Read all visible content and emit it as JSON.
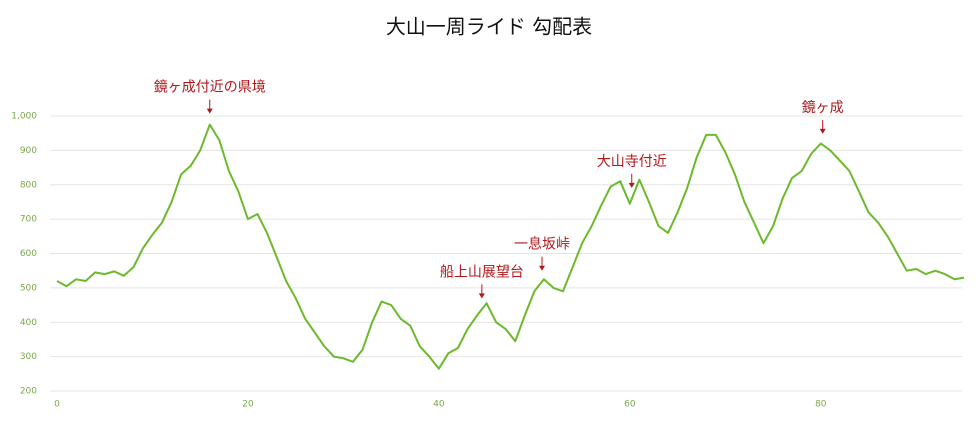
{
  "chart_data": {
    "type": "line",
    "title": "大山一周ライド 勾配表",
    "x": [
      0,
      1,
      2,
      3,
      4,
      5,
      6,
      7,
      8,
      9,
      10,
      11,
      12,
      13,
      14,
      15,
      16,
      17,
      18,
      19,
      20,
      21,
      22,
      23,
      24,
      25,
      26,
      27,
      28,
      29,
      30,
      31,
      32,
      33,
      34,
      35,
      36,
      37,
      38,
      39,
      40,
      41,
      42,
      43,
      44,
      45,
      46,
      47,
      48,
      49,
      50,
      51,
      52,
      53,
      54,
      55,
      56,
      57,
      58,
      59,
      60,
      61,
      62,
      63,
      64,
      65,
      66,
      67,
      68,
      69,
      70,
      71,
      72,
      73,
      74,
      75,
      76,
      77,
      78,
      79,
      80,
      81,
      82,
      83,
      84,
      85,
      86,
      87,
      88,
      89,
      90,
      91,
      92,
      93,
      94,
      95
    ],
    "series": [
      {
        "color": "#6cb92e",
        "values": [
          520,
          505,
          525,
          520,
          545,
          540,
          548,
          535,
          560,
          615,
          655,
          690,
          750,
          830,
          855,
          900,
          975,
          930,
          840,
          780,
          700,
          715,
          660,
          590,
          520,
          470,
          410,
          370,
          330,
          300,
          295,
          285,
          320,
          400,
          460,
          450,
          410,
          390,
          330,
          300,
          265,
          310,
          325,
          380,
          420,
          455,
          400,
          380,
          345,
          420,
          490,
          525,
          500,
          490,
          560,
          630,
          680,
          740,
          795,
          810,
          745,
          815,
          750,
          680,
          660,
          720,
          790,
          880,
          945,
          945,
          895,
          830,
          750,
          690,
          630,
          680,
          760,
          820,
          840,
          890,
          920,
          900,
          870,
          840,
          780,
          720,
          690,
          650,
          600,
          550,
          555,
          540,
          550,
          540,
          525,
          530
        ]
      }
    ],
    "xlim": [
      0,
      95
    ],
    "xticks": [
      0,
      20,
      40,
      60,
      80
    ],
    "ylim": [
      200,
      1000
    ],
    "yticks": [
      200,
      300,
      400,
      500,
      600,
      700,
      800,
      {
        "value": 900,
        "label": "900"
      },
      {
        "value": 1000,
        "label": "1,000"
      }
    ],
    "grid": true,
    "annotations": [
      {
        "text": "鏡ヶ成付近の県境",
        "x": 16
      },
      {
        "text": "船上山展望台",
        "x": 44.5
      },
      {
        "text": "一息坂峠",
        "x": 50.8
      },
      {
        "text": "大山寺付近",
        "x": 60.2
      },
      {
        "text": "鏡ヶ成",
        "x": 80.2
      }
    ]
  }
}
